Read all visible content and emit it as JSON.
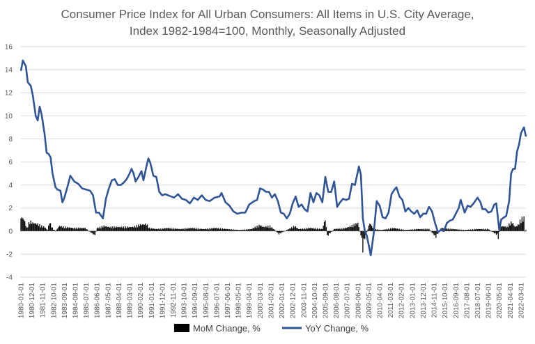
{
  "chart_data": {
    "type": "line",
    "title_line1": "Consumer Price Index for All Urban Consumers: All Items in U.S. City Average,",
    "title_line2": "Index 1982-1984=100, Monthly, Seasonally Adjusted",
    "xlabel": "",
    "ylabel": "",
    "ylim": [
      -4,
      16
    ],
    "yticks": [
      -4,
      -2,
      0,
      2,
      4,
      6,
      8,
      10,
      12,
      14,
      16
    ],
    "grid": true,
    "legend_position": "bottom",
    "x_start": "1980-01",
    "x_end": "2022-08",
    "x_tick_labels": [
      "1980-01-01",
      "1980-12-01",
      "1981-11-01",
      "1982-10-01",
      "1983-09-01",
      "1984-08-01",
      "1985-07-01",
      "1986-06-01",
      "1987-05-01",
      "1988-04-01",
      "1989-03-01",
      "1990-02-01",
      "1991-01-01",
      "1991-12-01",
      "1992-11-01",
      "1993-10-01",
      "1994-09-01",
      "1995-08-01",
      "1996-07-01",
      "1997-06-01",
      "1998-05-01",
      "1999-04-01",
      "2000-03-01",
      "2001-02-01",
      "2002-01-01",
      "2002-12-01",
      "2003-11-01",
      "2004-10-01",
      "2005-09-01",
      "2006-08-01",
      "2007-07-01",
      "2008-06-01",
      "2009-05-01",
      "2010-04-01",
      "2011-03-01",
      "2012-02-01",
      "2013-01-01",
      "2013-12-01",
      "2014-11-01",
      "2015-10-01",
      "2016-09-01",
      "2017-08-01",
      "2018-07-01",
      "2019-06-01",
      "2020-05-01",
      "2021-04-01",
      "2022-03-01"
    ],
    "series": [
      {
        "name": "YoY Change, %",
        "kind": "line",
        "color": "#2f5597",
        "anchors": [
          [
            "1980-01",
            13.9
          ],
          [
            "1980-03",
            14.8
          ],
          [
            "1980-06",
            14.3
          ],
          [
            "1980-08",
            12.9
          ],
          [
            "1980-11",
            12.6
          ],
          [
            "1981-01",
            11.8
          ],
          [
            "1981-04",
            10.0
          ],
          [
            "1981-06",
            9.6
          ],
          [
            "1981-08",
            10.8
          ],
          [
            "1981-10",
            10.1
          ],
          [
            "1982-01",
            8.4
          ],
          [
            "1982-03",
            6.8
          ],
          [
            "1982-05",
            6.7
          ],
          [
            "1982-07",
            6.4
          ],
          [
            "1982-09",
            5.0
          ],
          [
            "1982-12",
            3.8
          ],
          [
            "1983-02",
            3.6
          ],
          [
            "1983-05",
            3.5
          ],
          [
            "1983-07",
            2.5
          ],
          [
            "1983-09",
            2.9
          ],
          [
            "1983-12",
            3.8
          ],
          [
            "1984-03",
            4.8
          ],
          [
            "1984-07",
            4.3
          ],
          [
            "1984-11",
            4.1
          ],
          [
            "1985-03",
            3.7
          ],
          [
            "1985-07",
            3.6
          ],
          [
            "1985-11",
            3.5
          ],
          [
            "1986-02",
            3.1
          ],
          [
            "1986-05",
            1.6
          ],
          [
            "1986-08",
            1.6
          ],
          [
            "1986-12",
            1.1
          ],
          [
            "1987-03",
            2.8
          ],
          [
            "1987-06",
            3.7
          ],
          [
            "1987-09",
            4.4
          ],
          [
            "1987-12",
            4.5
          ],
          [
            "1988-03",
            4.0
          ],
          [
            "1988-06",
            4.0
          ],
          [
            "1988-09",
            4.2
          ],
          [
            "1988-12",
            4.5
          ],
          [
            "1989-03",
            5.0
          ],
          [
            "1989-05",
            5.4
          ],
          [
            "1989-07",
            5.0
          ],
          [
            "1989-09",
            4.3
          ],
          [
            "1989-12",
            4.7
          ],
          [
            "1990-03",
            5.2
          ],
          [
            "1990-05",
            4.4
          ],
          [
            "1990-08",
            5.6
          ],
          [
            "1990-10",
            6.3
          ],
          [
            "1990-12",
            5.9
          ],
          [
            "1991-03",
            4.8
          ],
          [
            "1991-06",
            4.7
          ],
          [
            "1991-09",
            3.4
          ],
          [
            "1991-12",
            3.1
          ],
          [
            "1992-03",
            3.2
          ],
          [
            "1992-06",
            3.1
          ],
          [
            "1992-09",
            3.0
          ],
          [
            "1992-12",
            2.9
          ],
          [
            "1993-04",
            3.2
          ],
          [
            "1993-08",
            2.8
          ],
          [
            "1993-12",
            2.7
          ],
          [
            "1994-04",
            2.4
          ],
          [
            "1994-08",
            2.9
          ],
          [
            "1994-12",
            2.7
          ],
          [
            "1995-04",
            3.1
          ],
          [
            "1995-08",
            2.7
          ],
          [
            "1995-12",
            2.6
          ],
          [
            "1996-05",
            2.9
          ],
          [
            "1996-10",
            3.0
          ],
          [
            "1996-12",
            3.3
          ],
          [
            "1997-04",
            2.5
          ],
          [
            "1997-08",
            2.2
          ],
          [
            "1997-12",
            1.7
          ],
          [
            "1998-04",
            1.5
          ],
          [
            "1998-08",
            1.6
          ],
          [
            "1998-12",
            1.6
          ],
          [
            "1999-04",
            2.3
          ],
          [
            "1999-09",
            2.6
          ],
          [
            "1999-12",
            2.7
          ],
          [
            "2000-03",
            3.7
          ],
          [
            "2000-06",
            3.6
          ],
          [
            "2000-09",
            3.4
          ],
          [
            "2000-12",
            3.4
          ],
          [
            "2001-03",
            2.9
          ],
          [
            "2001-06",
            3.2
          ],
          [
            "2001-09",
            2.6
          ],
          [
            "2001-12",
            1.6
          ],
          [
            "2002-03",
            1.5
          ],
          [
            "2002-06",
            1.1
          ],
          [
            "2002-09",
            1.5
          ],
          [
            "2002-12",
            2.4
          ],
          [
            "2003-03",
            3.0
          ],
          [
            "2003-06",
            2.1
          ],
          [
            "2003-09",
            2.3
          ],
          [
            "2003-12",
            1.9
          ],
          [
            "2004-03",
            1.7
          ],
          [
            "2004-06",
            3.3
          ],
          [
            "2004-09",
            2.5
          ],
          [
            "2004-12",
            3.3
          ],
          [
            "2005-03",
            3.1
          ],
          [
            "2005-06",
            2.5
          ],
          [
            "2005-09",
            4.7
          ],
          [
            "2005-12",
            3.4
          ],
          [
            "2006-03",
            3.4
          ],
          [
            "2006-06",
            4.3
          ],
          [
            "2006-09",
            2.1
          ],
          [
            "2006-12",
            2.5
          ],
          [
            "2007-03",
            2.8
          ],
          [
            "2007-06",
            2.7
          ],
          [
            "2007-09",
            2.8
          ],
          [
            "2007-12",
            4.1
          ],
          [
            "2008-03",
            4.0
          ],
          [
            "2008-07",
            5.6
          ],
          [
            "2008-09",
            4.9
          ],
          [
            "2008-11",
            1.1
          ],
          [
            "2009-01",
            0.0
          ],
          [
            "2009-03",
            -0.4
          ],
          [
            "2009-07",
            -2.1
          ],
          [
            "2009-10",
            -0.2
          ],
          [
            "2010-01",
            2.6
          ],
          [
            "2010-04",
            2.2
          ],
          [
            "2010-07",
            1.2
          ],
          [
            "2010-10",
            1.1
          ],
          [
            "2011-01",
            1.6
          ],
          [
            "2011-04",
            3.2
          ],
          [
            "2011-07",
            3.6
          ],
          [
            "2011-09",
            3.8
          ],
          [
            "2011-12",
            3.0
          ],
          [
            "2012-03",
            2.7
          ],
          [
            "2012-06",
            1.7
          ],
          [
            "2012-09",
            2.0
          ],
          [
            "2012-12",
            1.7
          ],
          [
            "2013-03",
            1.5
          ],
          [
            "2013-06",
            1.8
          ],
          [
            "2013-09",
            1.2
          ],
          [
            "2013-12",
            1.5
          ],
          [
            "2014-03",
            1.5
          ],
          [
            "2014-06",
            2.1
          ],
          [
            "2014-09",
            1.7
          ],
          [
            "2014-12",
            0.7
          ],
          [
            "2015-03",
            -0.1
          ],
          [
            "2015-06",
            0.1
          ],
          [
            "2015-09",
            0.0
          ],
          [
            "2015-12",
            0.7
          ],
          [
            "2016-03",
            0.9
          ],
          [
            "2016-06",
            1.0
          ],
          [
            "2016-09",
            1.5
          ],
          [
            "2016-12",
            2.0
          ],
          [
            "2017-02",
            2.7
          ],
          [
            "2017-06",
            1.6
          ],
          [
            "2017-09",
            2.2
          ],
          [
            "2017-12",
            2.1
          ],
          [
            "2018-03",
            2.4
          ],
          [
            "2018-07",
            2.9
          ],
          [
            "2018-10",
            2.5
          ],
          [
            "2018-12",
            1.9
          ],
          [
            "2019-03",
            1.9
          ],
          [
            "2019-06",
            1.6
          ],
          [
            "2019-09",
            1.7
          ],
          [
            "2019-12",
            2.3
          ],
          [
            "2020-02",
            2.4
          ],
          [
            "2020-05",
            0.1
          ],
          [
            "2020-07",
            1.0
          ],
          [
            "2020-10",
            1.2
          ],
          [
            "2020-12",
            1.3
          ],
          [
            "2021-03",
            2.6
          ],
          [
            "2021-05",
            5.0
          ],
          [
            "2021-07",
            5.4
          ],
          [
            "2021-09",
            5.4
          ],
          [
            "2021-11",
            6.9
          ],
          [
            "2022-01",
            7.5
          ],
          [
            "2022-03",
            8.5
          ],
          [
            "2022-06",
            9.0
          ],
          [
            "2022-08",
            8.2
          ]
        ]
      },
      {
        "name": "MoM Change, %",
        "kind": "bar",
        "color": "#000000",
        "anchors": [
          [
            "1980-01",
            1.4
          ],
          [
            "1980-04",
            1.2
          ],
          [
            "1980-07",
            0.3
          ],
          [
            "1980-10",
            1.0
          ],
          [
            "1981-01",
            0.8
          ],
          [
            "1981-06",
            0.7
          ],
          [
            "1981-10",
            0.5
          ],
          [
            "1982-01",
            0.4
          ],
          [
            "1982-04",
            0.1
          ],
          [
            "1982-06",
            0.9
          ],
          [
            "1982-09",
            0.3
          ],
          [
            "1982-12",
            0.0
          ],
          [
            "1983-04",
            0.5
          ],
          [
            "1983-09",
            0.4
          ],
          [
            "1984-06",
            0.3
          ],
          [
            "1985-06",
            0.3
          ],
          [
            "1986-02",
            -0.3
          ],
          [
            "1986-04",
            -0.4
          ],
          [
            "1986-06",
            0.3
          ],
          [
            "1987-01",
            0.5
          ],
          [
            "1987-06",
            0.4
          ],
          [
            "1988-06",
            0.4
          ],
          [
            "1989-06",
            0.4
          ],
          [
            "1990-01",
            0.6
          ],
          [
            "1990-08",
            0.7
          ],
          [
            "1990-11",
            0.3
          ],
          [
            "1991-06",
            0.2
          ],
          [
            "1992-06",
            0.3
          ],
          [
            "1993-06",
            0.2
          ],
          [
            "1994-06",
            0.3
          ],
          [
            "1995-06",
            0.2
          ],
          [
            "1996-06",
            0.3
          ],
          [
            "1997-06",
            0.2
          ],
          [
            "1998-06",
            0.1
          ],
          [
            "1999-06",
            0.2
          ],
          [
            "2000-03",
            0.6
          ],
          [
            "2000-06",
            0.4
          ],
          [
            "2001-01",
            0.5
          ],
          [
            "2001-06",
            0.1
          ],
          [
            "2001-10",
            -0.3
          ],
          [
            "2002-06",
            0.1
          ],
          [
            "2003-02",
            0.5
          ],
          [
            "2003-06",
            0.2
          ],
          [
            "2004-06",
            0.3
          ],
          [
            "2005-06",
            0.2
          ],
          [
            "2005-09",
            1.2
          ],
          [
            "2005-11",
            -0.5
          ],
          [
            "2006-06",
            0.2
          ],
          [
            "2007-06",
            0.3
          ],
          [
            "2008-06",
            0.8
          ],
          [
            "2008-10",
            -0.8
          ],
          [
            "2008-11",
            -1.9
          ],
          [
            "2008-12",
            -1.0
          ],
          [
            "2009-06",
            0.8
          ],
          [
            "2009-10",
            0.2
          ],
          [
            "2010-06",
            0.1
          ],
          [
            "2011-06",
            0.3
          ],
          [
            "2012-06",
            0.1
          ],
          [
            "2013-06",
            0.2
          ],
          [
            "2014-06",
            0.2
          ],
          [
            "2014-12",
            -0.5
          ],
          [
            "2015-01",
            -0.6
          ],
          [
            "2015-06",
            0.3
          ],
          [
            "2016-06",
            0.2
          ],
          [
            "2017-06",
            0.1
          ],
          [
            "2018-06",
            0.2
          ],
          [
            "2019-06",
            0.2
          ],
          [
            "2020-03",
            -0.4
          ],
          [
            "2020-04",
            -0.7
          ],
          [
            "2020-06",
            0.5
          ],
          [
            "2021-01",
            0.4
          ],
          [
            "2021-04",
            0.8
          ],
          [
            "2021-06",
            0.9
          ],
          [
            "2021-09",
            0.4
          ],
          [
            "2021-12",
            0.6
          ],
          [
            "2022-03",
            1.2
          ],
          [
            "2022-06",
            1.3
          ],
          [
            "2022-07",
            0.0
          ],
          [
            "2022-08",
            0.1
          ]
        ]
      }
    ]
  }
}
